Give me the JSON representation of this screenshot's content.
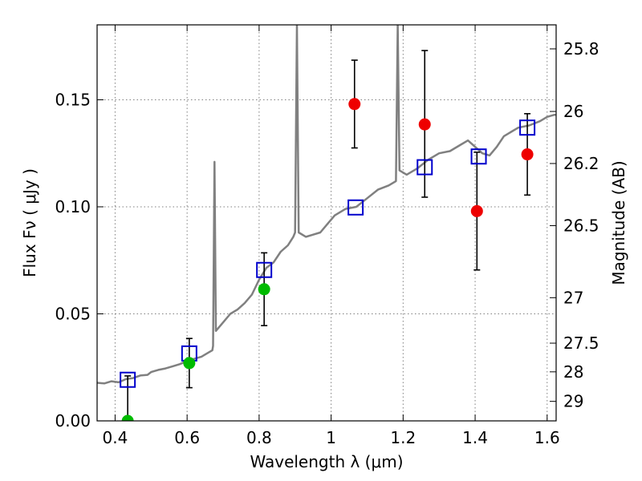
{
  "chart_data": {
    "type": "scatter",
    "title": "",
    "xlabel": "Wavelength  λ (μm)",
    "ylabel": "Flux  Fν  ( μJy )",
    "y2label": "Magnitude (AB)",
    "xlim": [
      0.35,
      1.625
    ],
    "ylim": [
      0.0,
      0.185
    ],
    "grid": true,
    "x_ticks": [
      {
        "v": 0.4,
        "label": "0.4"
      },
      {
        "v": 0.6,
        "label": "0.6"
      },
      {
        "v": 0.8,
        "label": "0.8"
      },
      {
        "v": 1.0,
        "label": "1"
      },
      {
        "v": 1.2,
        "label": "1.2"
      },
      {
        "v": 1.4,
        "label": "1.4"
      },
      {
        "v": 1.6,
        "label": "1.6"
      }
    ],
    "y_ticks": [
      {
        "v": 0.0,
        "label": "0.00"
      },
      {
        "v": 0.05,
        "label": "0.05"
      },
      {
        "v": 0.1,
        "label": "0.10"
      },
      {
        "v": 0.15,
        "label": "0.15"
      }
    ],
    "mag_ticks": [
      {
        "mag": 25.8,
        "label": "25.8"
      },
      {
        "mag": 26.0,
        "label": "26"
      },
      {
        "mag": 26.2,
        "label": "26.2"
      },
      {
        "mag": 26.5,
        "label": "26.5"
      },
      {
        "mag": 27.0,
        "label": "27"
      },
      {
        "mag": 27.5,
        "label": "27.5"
      },
      {
        "mag": 28.0,
        "label": "28"
      },
      {
        "mag": 29.0,
        "label": "29"
      }
    ],
    "colors": {
      "template": "#808080",
      "model_box": "#0000cc",
      "detect_red": "#ee0000",
      "detect_green": "#00bb00",
      "errorbar": "#000000",
      "grid": "#7f7f7f"
    },
    "series": [
      {
        "name": "model_photometry",
        "marker": "square",
        "points": [
          {
            "x": 0.435,
            "y": 0.0192
          },
          {
            "x": 0.606,
            "y": 0.0315
          },
          {
            "x": 0.814,
            "y": 0.0705
          },
          {
            "x": 1.068,
            "y": 0.0997
          },
          {
            "x": 1.26,
            "y": 0.1185
          },
          {
            "x": 1.41,
            "y": 0.1235
          },
          {
            "x": 1.545,
            "y": 0.137
          }
        ]
      },
      {
        "name": "observed_red",
        "marker": "circle",
        "points": [
          {
            "x": 1.065,
            "y": 0.148,
            "lo": 0.1275,
            "hi": 0.1685
          },
          {
            "x": 1.26,
            "y": 0.1385,
            "lo": 0.1045,
            "hi": 0.173
          },
          {
            "x": 1.405,
            "y": 0.098,
            "lo": 0.0705,
            "hi": 0.1255
          },
          {
            "x": 1.545,
            "y": 0.1245,
            "lo": 0.1055,
            "hi": 0.1435
          }
        ]
      },
      {
        "name": "observed_green",
        "marker": "circle",
        "points": [
          {
            "x": 0.435,
            "y": 0.0,
            "lo": 0.0,
            "hi": 0.021
          },
          {
            "x": 0.606,
            "y": 0.027,
            "lo": 0.0155,
            "hi": 0.0385
          },
          {
            "x": 0.814,
            "y": 0.0615,
            "lo": 0.0445,
            "hi": 0.0785
          }
        ]
      }
    ],
    "template_spectrum": [
      [
        0.35,
        0.0178
      ],
      [
        0.37,
        0.0175
      ],
      [
        0.39,
        0.0185
      ],
      [
        0.41,
        0.018
      ],
      [
        0.43,
        0.0195
      ],
      [
        0.45,
        0.02
      ],
      [
        0.47,
        0.0212
      ],
      [
        0.49,
        0.0215
      ],
      [
        0.5,
        0.0228
      ],
      [
        0.52,
        0.0238
      ],
      [
        0.54,
        0.0245
      ],
      [
        0.56,
        0.0255
      ],
      [
        0.58,
        0.0265
      ],
      [
        0.6,
        0.028
      ],
      [
        0.62,
        0.029
      ],
      [
        0.64,
        0.03
      ],
      [
        0.66,
        0.032
      ],
      [
        0.67,
        0.033
      ],
      [
        0.672,
        0.035
      ],
      [
        0.676,
        0.121
      ],
      [
        0.68,
        0.042
      ],
      [
        0.7,
        0.046
      ],
      [
        0.72,
        0.05
      ],
      [
        0.74,
        0.052
      ],
      [
        0.76,
        0.055
      ],
      [
        0.78,
        0.059
      ],
      [
        0.8,
        0.066
      ],
      [
        0.82,
        0.0715
      ],
      [
        0.84,
        0.074
      ],
      [
        0.86,
        0.079
      ],
      [
        0.88,
        0.082
      ],
      [
        0.895,
        0.086
      ],
      [
        0.9,
        0.088
      ],
      [
        0.905,
        0.185
      ],
      [
        0.91,
        0.088
      ],
      [
        0.93,
        0.086
      ],
      [
        0.95,
        0.087
      ],
      [
        0.97,
        0.088
      ],
      [
        0.99,
        0.092
      ],
      [
        1.01,
        0.096
      ],
      [
        1.04,
        0.099
      ],
      [
        1.07,
        0.1
      ],
      [
        1.1,
        0.104
      ],
      [
        1.13,
        0.108
      ],
      [
        1.16,
        0.11
      ],
      [
        1.18,
        0.112
      ],
      [
        1.185,
        0.185
      ],
      [
        1.19,
        0.117
      ],
      [
        1.21,
        0.115
      ],
      [
        1.24,
        0.118
      ],
      [
        1.27,
        0.122
      ],
      [
        1.3,
        0.125
      ],
      [
        1.33,
        0.126
      ],
      [
        1.36,
        0.129
      ],
      [
        1.38,
        0.131
      ],
      [
        1.4,
        0.128
      ],
      [
        1.42,
        0.125
      ],
      [
        1.44,
        0.124
      ],
      [
        1.46,
        0.128
      ],
      [
        1.48,
        0.133
      ],
      [
        1.5,
        0.135
      ],
      [
        1.52,
        0.137
      ],
      [
        1.55,
        0.138
      ],
      [
        1.58,
        0.14
      ],
      [
        1.6,
        0.142
      ],
      [
        1.62,
        0.143
      ],
      [
        1.625,
        0.143
      ]
    ]
  }
}
